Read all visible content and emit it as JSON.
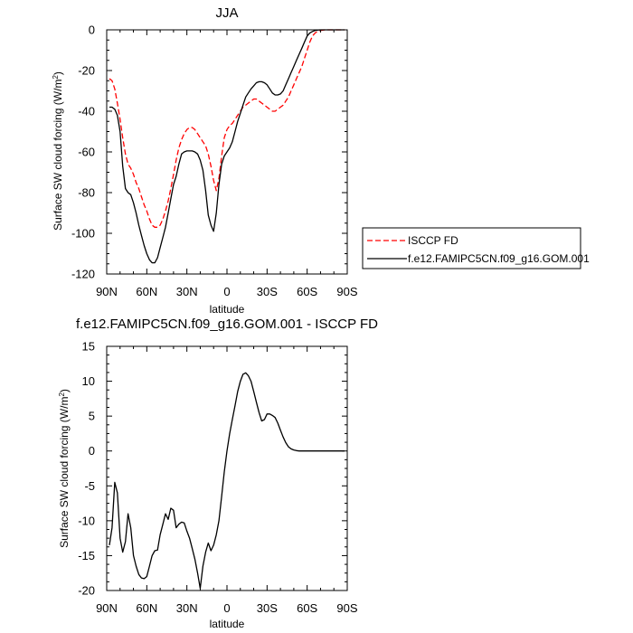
{
  "chart_data": [
    {
      "type": "line",
      "title": "JJA",
      "xlabel": "latitude",
      "ylabel": "Surface SW cloud forcing (W/m",
      "ylabel_sup": "2",
      "ylabel_close": ")",
      "xlim": [
        90,
        -90
      ],
      "ylim": [
        -120,
        0
      ],
      "x_ticks": [
        90,
        60,
        30,
        0,
        -30,
        -60,
        -90
      ],
      "x_tick_labels": [
        "90N",
        "60N",
        "30N",
        "0",
        "30S",
        "60S",
        "90S"
      ],
      "y_ticks": [
        0,
        -20,
        -40,
        -60,
        -80,
        -100,
        -120
      ],
      "y_tick_labels": [
        "0",
        "-20",
        "-40",
        "-60",
        "-80",
        "-100",
        "-120"
      ],
      "grid": false,
      "legend_position": "right-outside",
      "series": [
        {
          "name": "ISCCP FD",
          "color": "#ff0000",
          "dash": "dashed",
          "x": [
            88,
            86,
            84,
            82,
            80,
            78,
            76,
            74,
            72,
            70,
            68,
            66,
            64,
            62,
            60,
            58,
            56,
            54,
            52,
            50,
            48,
            46,
            44,
            42,
            40,
            38,
            36,
            34,
            32,
            30,
            28,
            26,
            24,
            22,
            20,
            18,
            16,
            14,
            12,
            10,
            8,
            6,
            4,
            2,
            0,
            -2,
            -4,
            -6,
            -8,
            -10,
            -12,
            -14,
            -16,
            -18,
            -20,
            -22,
            -24,
            -26,
            -28,
            -30,
            -32,
            -34,
            -36,
            -38,
            -40,
            -42,
            -44,
            -46,
            -48,
            -50,
            -52,
            -54,
            -56,
            -58,
            -60,
            -62,
            -64,
            -66,
            -68,
            -70,
            -72,
            -74,
            -76,
            -78,
            -80,
            -82,
            -84,
            -86,
            -88
          ],
          "values": [
            -24,
            -25,
            -29,
            -36,
            -44,
            -53,
            -61,
            -66,
            -68,
            -71,
            -75,
            -78,
            -82,
            -86,
            -89,
            -93,
            -96,
            -97,
            -97,
            -96,
            -93,
            -89,
            -84,
            -78,
            -71,
            -64,
            -58,
            -54,
            -51,
            -49,
            -48,
            -48,
            -49,
            -51,
            -53,
            -55,
            -57,
            -61,
            -67,
            -74,
            -79,
            -73,
            -62,
            -53,
            -49,
            -47,
            -46,
            -44,
            -42,
            -40,
            -38,
            -37,
            -36,
            -35,
            -34,
            -34,
            -35,
            -36,
            -37,
            -38,
            -39,
            -40,
            -40,
            -39,
            -38,
            -37,
            -35,
            -33,
            -30,
            -27,
            -24,
            -21,
            -18,
            -14,
            -10,
            -6,
            -3,
            -1.5,
            -0.7,
            -0.3,
            -0.1,
            0,
            0,
            0,
            0,
            0,
            0,
            0,
            0
          ]
        },
        {
          "name": "f.e12.FAMIPC5CN.f09_g16.GOM.001",
          "color": "#000000",
          "dash": "solid",
          "x": [
            88,
            86,
            84,
            82,
            80,
            78,
            76,
            74,
            72,
            70,
            68,
            66,
            64,
            62,
            60,
            58,
            56,
            54,
            52,
            50,
            48,
            46,
            44,
            42,
            40,
            38,
            36,
            34,
            32,
            30,
            28,
            26,
            24,
            22,
            20,
            18,
            16,
            14,
            12,
            10,
            8,
            6,
            4,
            2,
            0,
            -2,
            -4,
            -6,
            -8,
            -10,
            -12,
            -14,
            -16,
            -18,
            -20,
            -22,
            -24,
            -26,
            -28,
            -30,
            -32,
            -34,
            -36,
            -38,
            -40,
            -42,
            -44,
            -46,
            -48,
            -50,
            -52,
            -54,
            -56,
            -58,
            -60,
            -62,
            -64,
            -66,
            -68,
            -70,
            -72,
            -74,
            -76,
            -78,
            -80,
            -82,
            -84,
            -86,
            -88
          ],
          "values": [
            -38,
            -38,
            -39,
            -42,
            -50,
            -67,
            -78,
            -80,
            -81,
            -85,
            -90,
            -96,
            -101,
            -106,
            -110,
            -113,
            -114.5,
            -114.5,
            -112,
            -107,
            -102,
            -97,
            -90,
            -83,
            -76,
            -72,
            -66,
            -61,
            -60,
            -59.5,
            -59.5,
            -59.5,
            -60,
            -61,
            -64,
            -69,
            -79,
            -91,
            -96,
            -99,
            -90,
            -76,
            -66,
            -62,
            -60,
            -58,
            -55,
            -50,
            -45,
            -41,
            -37,
            -33,
            -31,
            -29,
            -27.5,
            -26,
            -25.5,
            -25.5,
            -26,
            -27,
            -29,
            -31,
            -32,
            -32,
            -31.5,
            -30,
            -27,
            -24,
            -21,
            -18,
            -15,
            -12,
            -9,
            -6,
            -3,
            -1.5,
            -0.8,
            -0.3,
            -0.1,
            0,
            0,
            0,
            0,
            0,
            0,
            0,
            0,
            0,
            0
          ]
        }
      ]
    },
    {
      "type": "line",
      "title": "f.e12.FAMIPC5CN.f09_g16.GOM.001 - ISCCP FD",
      "xlabel": "latitude",
      "ylabel": "Surface SW cloud forcing (W/m",
      "ylabel_sup": "2",
      "ylabel_close": ")",
      "xlim": [
        90,
        -90
      ],
      "ylim": [
        -20,
        15
      ],
      "x_ticks": [
        90,
        60,
        30,
        0,
        -30,
        -60,
        -90
      ],
      "x_tick_labels": [
        "90N",
        "60N",
        "30N",
        "0",
        "30S",
        "60S",
        "90S"
      ],
      "y_ticks": [
        15,
        10,
        5,
        0,
        -5,
        -10,
        -15,
        -20
      ],
      "y_tick_labels": [
        "15",
        "10",
        "5",
        "0",
        "-5",
        "-10",
        "-15",
        "-20"
      ],
      "grid": false,
      "series": [
        {
          "color": "#000000",
          "dash": "solid",
          "x": [
            88,
            86,
            84,
            82,
            80,
            78,
            76,
            74,
            72,
            70,
            68,
            66,
            64,
            62,
            60,
            58,
            56,
            54,
            52,
            50,
            48,
            46,
            44,
            42,
            40,
            38,
            36,
            34,
            32,
            30,
            28,
            26,
            24,
            22,
            20,
            18,
            16,
            14,
            12,
            10,
            8,
            6,
            4,
            2,
            0,
            -2,
            -4,
            -6,
            -8,
            -10,
            -12,
            -14,
            -16,
            -18,
            -20,
            -22,
            -24,
            -26,
            -28,
            -30,
            -32,
            -34,
            -36,
            -38,
            -40,
            -42,
            -44,
            -46,
            -48,
            -50,
            -52,
            -54,
            -56,
            -58,
            -60,
            -62,
            -64,
            -66,
            -68,
            -70,
            -72,
            -74,
            -76,
            -78,
            -80,
            -82,
            -84,
            -86,
            -88
          ],
          "values": [
            -13.5,
            -11,
            -4.5,
            -6,
            -12.5,
            -14.5,
            -13,
            -9,
            -11,
            -15,
            -16.5,
            -17.7,
            -18.2,
            -18.3,
            -18,
            -16.5,
            -15,
            -14.3,
            -14.2,
            -12,
            -10.5,
            -9,
            -9.8,
            -8.2,
            -8.5,
            -11,
            -10.5,
            -10.2,
            -10.3,
            -11.5,
            -12.5,
            -14,
            -15.5,
            -17.5,
            -19.7,
            -16.5,
            -14.5,
            -13.2,
            -14.3,
            -13.5,
            -12,
            -10,
            -6.5,
            -3,
            0,
            2.5,
            4.5,
            6.5,
            8.5,
            10,
            11,
            11.2,
            10.8,
            10,
            8.5,
            7,
            5.5,
            4.3,
            4.5,
            5.3,
            5.3,
            5.1,
            4.8,
            4,
            3,
            2,
            1.2,
            0.6,
            0.3,
            0.15,
            0.05,
            0,
            0,
            0,
            0,
            0,
            0,
            0,
            0,
            0,
            0,
            0,
            0,
            0,
            0,
            0,
            0,
            0,
            0
          ]
        }
      ]
    }
  ]
}
